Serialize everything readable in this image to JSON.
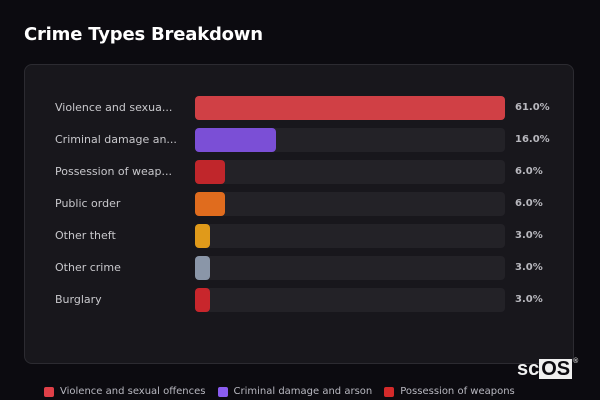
{
  "title": "Crime Types Breakdown",
  "chart_data": {
    "type": "bar",
    "orientation": "horizontal",
    "title": "Crime Types Breakdown",
    "categories": [
      "Violence and sexual offences",
      "Criminal damage and arson",
      "Possession of weapons",
      "Public order",
      "Other theft",
      "Other crime",
      "Burglary"
    ],
    "display_labels": [
      "Violence and sexua...",
      "Criminal damage an...",
      "Possession of weap...",
      "Public order",
      "Other theft",
      "Other crime",
      "Burglary"
    ],
    "values": [
      61.0,
      16.0,
      6.0,
      6.0,
      3.0,
      3.0,
      3.0
    ],
    "value_labels": [
      "61.0%",
      "16.0%",
      "6.0%",
      "6.0%",
      "3.0%",
      "3.0%",
      "3.0%"
    ],
    "colors": [
      "#d04045",
      "#7b4fd6",
      "#c0262b",
      "#e06c1e",
      "#e09a1a",
      "#8a96a8",
      "#c8262c"
    ],
    "unit": "%",
    "xlim": [
      0,
      61
    ],
    "grid": false,
    "legend_position": "bottom"
  },
  "legend": [
    {
      "label": "Violence and sexual offences",
      "color": "#e04048"
    },
    {
      "label": "Criminal damage and arson",
      "color": "#8a5cf0"
    },
    {
      "label": "Possession of weapons",
      "color": "#d42a2a"
    }
  ],
  "brand": {
    "prefix": "sc",
    "boxed": "OS",
    "reg": "®"
  }
}
